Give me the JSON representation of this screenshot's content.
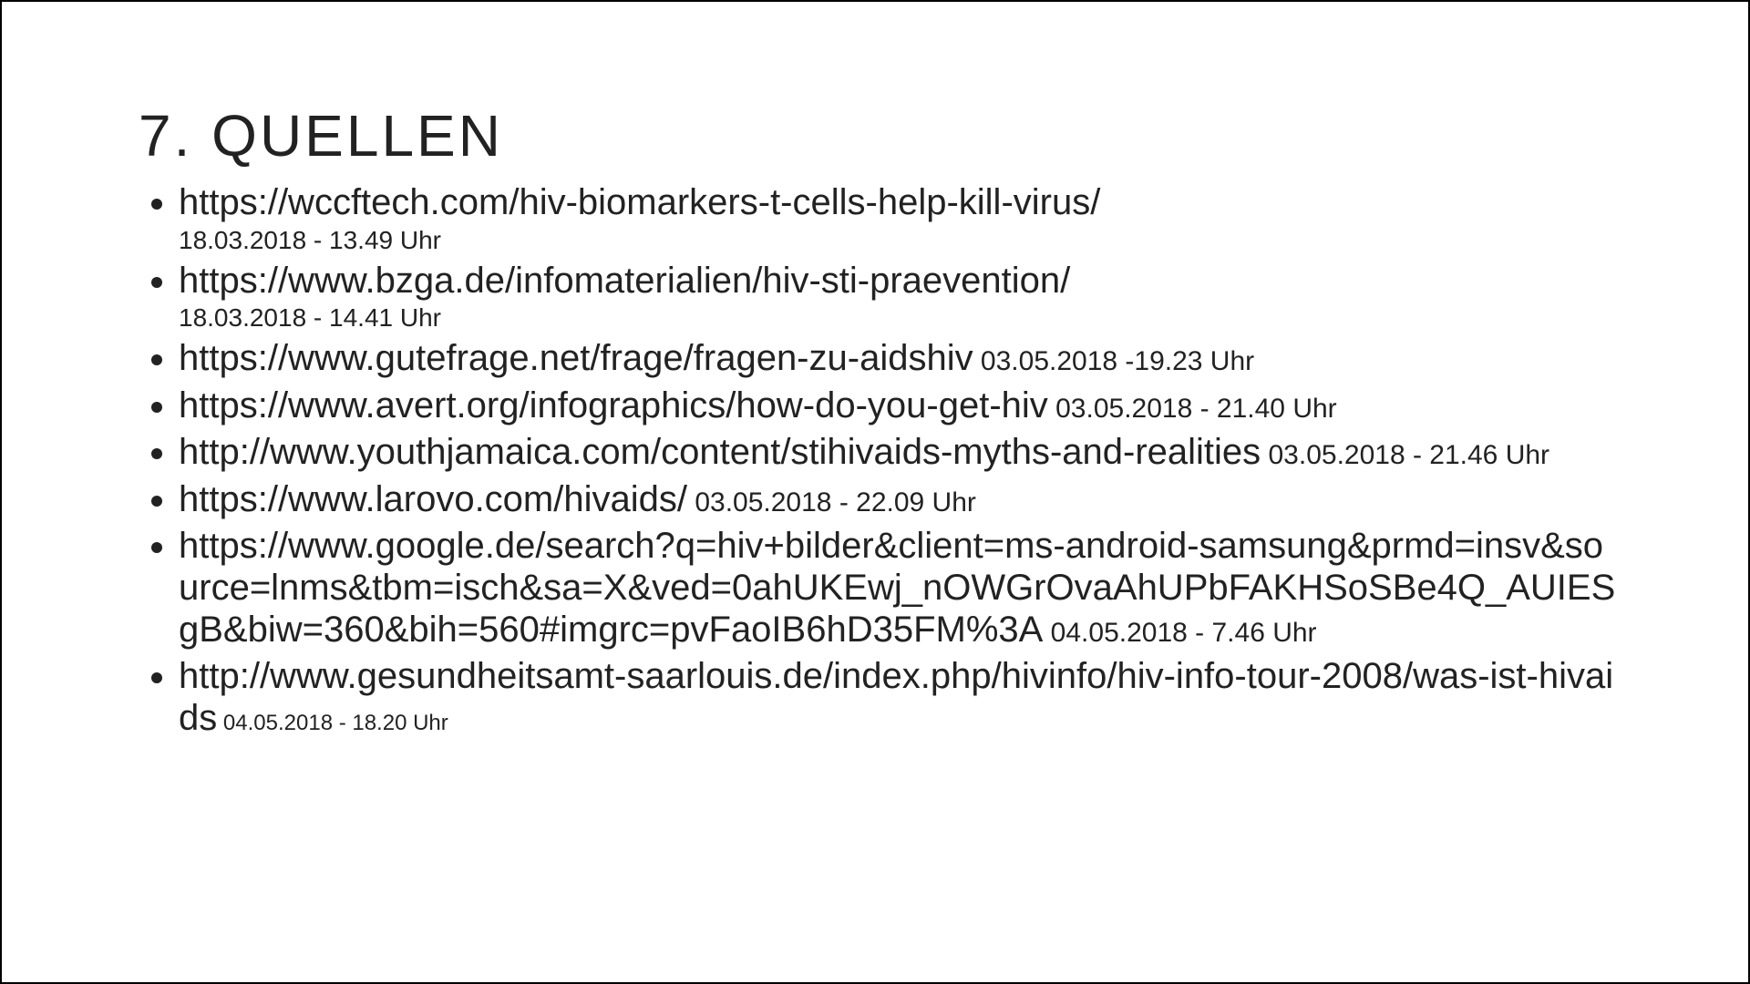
{
  "title": "7.  QUELLEN",
  "items": [
    {
      "url": "https://wccftech.com/hiv-biomarkers-t-cells-help-kill-virus/",
      "ts": "18.03.2018 - 13.49 Uhr",
      "tsMode": "block"
    },
    {
      "url": "https://www.bzga.de/infomaterialien/hiv-sti-praevention/",
      "ts": "18.03.2018 - 14.41 Uhr",
      "tsMode": "block"
    },
    {
      "url": "https://www.gutefrage.net/frage/fragen-zu-aidshiv",
      "ts": " 03.05.2018 -19.23 Uhr",
      "tsMode": "inline"
    },
    {
      "url": "https://www.avert.org/infographics/how-do-you-get-hiv",
      "ts": "  03.05.2018 - 21.40 Uhr",
      "tsMode": "inline"
    },
    {
      "url": "http://www.youthjamaica.com/content/stihivaids-myths-and-realities",
      "ts": " 03.05.2018 - 21.46 Uhr",
      "tsMode": "inline"
    },
    {
      "url": "https://www.larovo.com/hivaids/",
      "ts": "  03.05.2018 - 22.09 Uhr",
      "tsMode": "inline"
    },
    {
      "url": "https://www.google.de/search?q=hiv+bilder&client=ms-android-samsung&prmd=insv&source=lnms&tbm=isch&sa=X&ved=0ahUKEwj_nOWGrOvaAhUPbFAKHSoSBe4Q_AUIESgB&biw=360&bih=560#imgrc=pvFaoIB6hD35FM%3A",
      "ts": " 04.05.2018 - 7.46 Uhr",
      "tsMode": "inline"
    },
    {
      "url": "http://www.gesundheitsamt-saarlouis.de/index.php/hivinfo/hiv-info-tour-2008/was-ist-hivaids",
      "ts": " 04.05.2018 - 18.20 Uhr",
      "tsMode": "inline-small"
    }
  ]
}
